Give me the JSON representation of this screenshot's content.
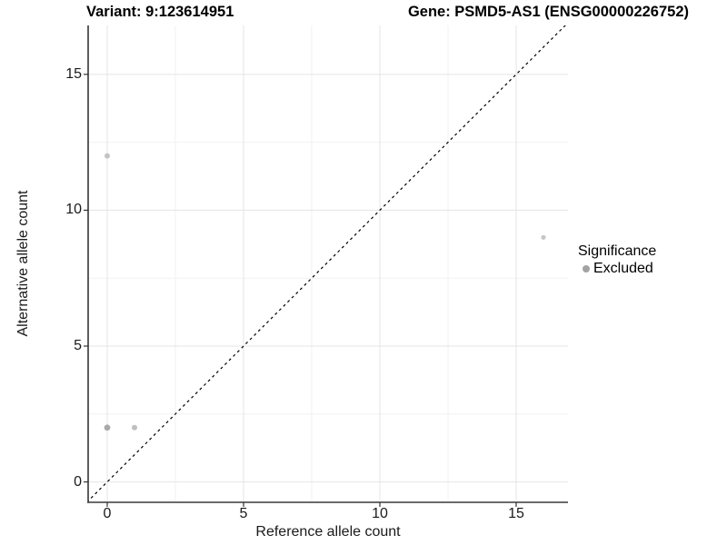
{
  "chart_data": {
    "type": "scatter",
    "title_left": "Variant: 9:123614951",
    "title_right": "Gene: PSMD5-AS1 (ENSG00000226752)",
    "xlabel": "Reference allele count",
    "ylabel": "Alternative allele count",
    "xlim": [
      -0.7,
      16.9
    ],
    "ylim": [
      -0.75,
      16.8
    ],
    "x_ticks": [
      0,
      5,
      10,
      15
    ],
    "y_ticks": [
      0,
      5,
      10,
      15
    ],
    "x_minor_ticks": [
      2.5,
      7.5,
      12.5
    ],
    "y_minor_ticks": [
      2.5,
      7.5,
      12.5
    ],
    "grid": true,
    "identity_line": {
      "slope": 1,
      "intercept": 0,
      "style": "dashed",
      "color": "#000000"
    },
    "series": [
      {
        "name": "Excluded",
        "points": [
          {
            "x": 0,
            "y": 12,
            "color": "#c4c4c4",
            "r": 3
          },
          {
            "x": 0,
            "y": 2,
            "color": "#a9a9a9",
            "r": 3.4
          },
          {
            "x": 1,
            "y": 2,
            "color": "#bfbfbf",
            "r": 3
          },
          {
            "x": 16,
            "y": 9,
            "color": "#c6c6c6",
            "r": 2.6
          }
        ]
      }
    ],
    "legend": {
      "title": "Significance",
      "items": [
        {
          "label": "Excluded",
          "color": "#a3a3a3"
        }
      ],
      "position": "right"
    },
    "colors": {
      "grid_major": "#e4e4e4",
      "grid_minor": "#f2f2f2",
      "axis_line_left": "#1a1a1a",
      "axis_line_bottom": "#555555",
      "tick_mark": "#333333"
    }
  }
}
